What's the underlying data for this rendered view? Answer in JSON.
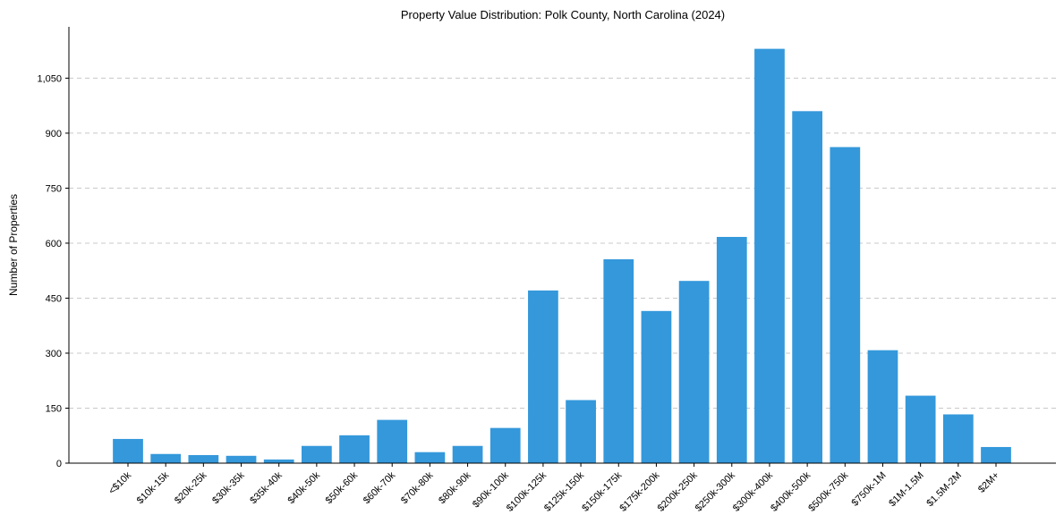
{
  "chart_data": {
    "type": "bar",
    "title": "Property Value Distribution: Polk County, North Carolina (2024)",
    "xlabel": "",
    "ylabel": "Number of Properties",
    "categories": [
      "<$10k",
      "$10k-15k",
      "$20k-25k",
      "$30k-35k",
      "$35k-40k",
      "$40k-50k",
      "$50k-60k",
      "$60k-70k",
      "$70k-80k",
      "$80k-90k",
      "$90k-100k",
      "$100k-125k",
      "$125k-150k",
      "$150k-175k",
      "$175k-200k",
      "$200k-250k",
      "$250k-300k",
      "$300k-400k",
      "$400k-500k",
      "$500k-750k",
      "$750k-1M",
      "$1M-1.5M",
      "$1.5M-2M",
      "$2M+"
    ],
    "values": [
      66,
      25,
      22,
      20,
      10,
      47,
      76,
      118,
      30,
      47,
      96,
      471,
      172,
      556,
      415,
      497,
      617,
      1130,
      960,
      862,
      308,
      184,
      133,
      44
    ],
    "ylim": [
      0,
      1190
    ],
    "yticks": [
      0,
      150,
      300,
      450,
      600,
      750,
      900,
      1050
    ],
    "ytick_labels": [
      "0",
      "150",
      "300",
      "450",
      "600",
      "750",
      "900",
      "1,050"
    ],
    "grid": "y-dashed",
    "bar_color": "#3498db",
    "legend": "none"
  }
}
